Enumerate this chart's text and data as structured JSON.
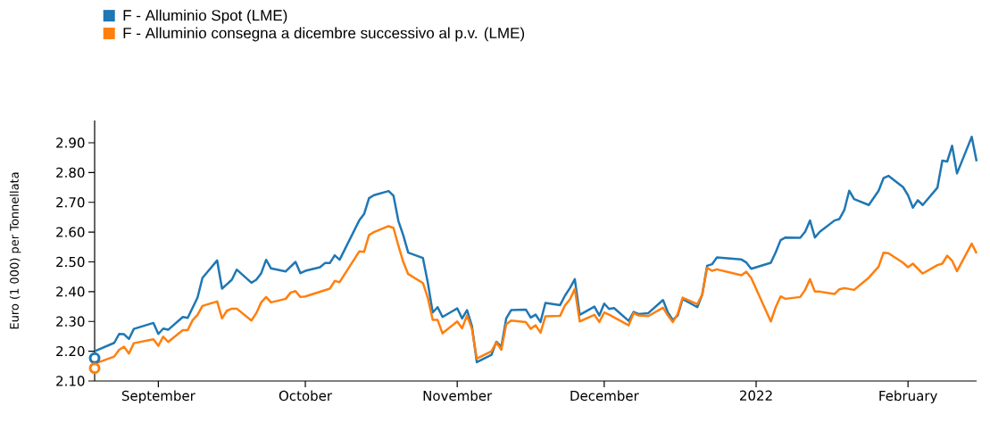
{
  "chart_data": {
    "type": "line",
    "ylabel": "Euro (1 000) per Tonnellata",
    "legend": "top left",
    "grid": false,
    "xlim": [
      "2021-08-19",
      "2022-02-15"
    ],
    "xticks": [
      {
        "value": "2021-09-01",
        "label": "September"
      },
      {
        "value": "2021-10-01",
        "label": "October"
      },
      {
        "value": "2021-11-01",
        "label": "November"
      },
      {
        "value": "2021-12-01",
        "label": "December"
      },
      {
        "value": "2022-01-01",
        "label": "2022"
      },
      {
        "value": "2022-02-01",
        "label": "February"
      }
    ],
    "ylim": [
      2.1,
      2.975
    ],
    "yticks": [
      {
        "value": 2.1,
        "label": "2.10"
      },
      {
        "value": 2.2,
        "label": "2.20"
      },
      {
        "value": 2.3,
        "label": "2.30"
      },
      {
        "value": 2.4,
        "label": "2.40"
      },
      {
        "value": 2.5,
        "label": "2.50"
      },
      {
        "value": 2.6,
        "label": "2.60"
      },
      {
        "value": 2.7,
        "label": "2.70"
      },
      {
        "value": 2.8,
        "label": "2.80"
      },
      {
        "value": 2.9,
        "label": "2.90"
      }
    ],
    "series": [
      {
        "name": "F - Alluminio Spot (LME)",
        "color": "#1f77b4",
        "x": [
          "2021-08-19",
          "2021-08-23",
          "2021-08-24",
          "2021-08-25",
          "2021-08-26",
          "2021-08-27",
          "2021-08-31",
          "2021-09-01",
          "2021-09-02",
          "2021-09-03",
          "2021-09-06",
          "2021-09-07",
          "2021-09-09",
          "2021-09-10",
          "2021-09-13",
          "2021-09-14",
          "2021-09-16",
          "2021-09-17",
          "2021-09-20",
          "2021-09-21",
          "2021-09-22",
          "2021-09-23",
          "2021-09-24",
          "2021-09-27",
          "2021-09-29",
          "2021-09-30",
          "2021-10-01",
          "2021-10-04",
          "2021-10-05",
          "2021-10-06",
          "2021-10-07",
          "2021-10-08",
          "2021-10-12",
          "2021-10-13",
          "2021-10-14",
          "2021-10-15",
          "2021-10-18",
          "2021-10-19",
          "2021-10-20",
          "2021-10-21",
          "2021-10-22",
          "2021-10-25",
          "2021-10-26",
          "2021-10-27",
          "2021-10-28",
          "2021-10-29",
          "2021-11-01",
          "2021-11-02",
          "2021-11-03",
          "2021-11-04",
          "2021-11-05",
          "2021-11-08",
          "2021-11-09",
          "2021-11-10",
          "2021-11-11",
          "2021-11-12",
          "2021-11-15",
          "2021-11-16",
          "2021-11-17",
          "2021-11-18",
          "2021-11-19",
          "2021-11-22",
          "2021-11-23",
          "2021-11-24",
          "2021-11-25",
          "2021-11-26",
          "2021-11-29",
          "2021-11-30",
          "2021-12-01",
          "2021-12-02",
          "2021-12-03",
          "2021-12-06",
          "2021-12-07",
          "2021-12-08",
          "2021-12-10",
          "2021-12-13",
          "2021-12-14",
          "2021-12-15",
          "2021-12-16",
          "2021-12-17",
          "2021-12-20",
          "2021-12-21",
          "2021-12-22",
          "2021-12-23",
          "2021-12-24",
          "2021-12-29",
          "2021-12-30",
          "2021-12-31",
          "2022-01-04",
          "2022-01-05",
          "2022-01-06",
          "2022-01-07",
          "2022-01-10",
          "2022-01-11",
          "2022-01-12",
          "2022-01-13",
          "2022-01-14",
          "2022-01-17",
          "2022-01-18",
          "2022-01-19",
          "2022-01-20",
          "2022-01-21",
          "2022-01-24",
          "2022-01-26",
          "2022-01-27",
          "2022-01-28",
          "2022-01-31",
          "2022-02-01",
          "2022-02-02",
          "2022-02-03",
          "2022-02-04",
          "2022-02-07",
          "2022-02-08",
          "2022-02-09",
          "2022-02-10",
          "2022-02-11",
          "2022-02-14",
          "2022-02-15"
        ],
        "values": [
          2.2,
          2.228,
          2.258,
          2.257,
          2.241,
          2.275,
          2.295,
          2.258,
          2.276,
          2.272,
          2.315,
          2.312,
          2.38,
          2.446,
          2.505,
          2.41,
          2.44,
          2.474,
          2.43,
          2.44,
          2.462,
          2.507,
          2.478,
          2.468,
          2.5,
          2.462,
          2.47,
          2.482,
          2.496,
          2.496,
          2.522,
          2.507,
          2.639,
          2.661,
          2.714,
          2.724,
          2.738,
          2.722,
          2.637,
          2.589,
          2.531,
          2.513,
          2.43,
          2.33,
          2.348,
          2.315,
          2.344,
          2.31,
          2.338,
          2.285,
          2.163,
          2.188,
          2.232,
          2.214,
          2.31,
          2.338,
          2.34,
          2.313,
          2.323,
          2.298,
          2.362,
          2.355,
          2.387,
          2.412,
          2.442,
          2.322,
          2.35,
          2.32,
          2.36,
          2.342,
          2.345,
          2.302,
          2.332,
          2.325,
          2.328,
          2.372,
          2.33,
          2.305,
          2.32,
          2.375,
          2.348,
          2.39,
          2.487,
          2.492,
          2.515,
          2.508,
          2.498,
          2.477,
          2.497,
          2.532,
          2.573,
          2.582,
          2.581,
          2.601,
          2.639,
          2.582,
          2.601,
          2.639,
          2.644,
          2.674,
          2.739,
          2.711,
          2.691,
          2.739,
          2.781,
          2.789,
          2.751,
          2.724,
          2.682,
          2.707,
          2.691,
          2.749,
          2.84,
          2.837,
          2.89,
          2.797,
          2.92,
          2.838
        ]
      },
      {
        "name": "F - Alluminio consegna a dicembre successivo al p.v. (LME)",
        "color": "#ff7f0e",
        "x": [
          "2021-08-19",
          "2021-08-23",
          "2021-08-24",
          "2021-08-25",
          "2021-08-26",
          "2021-08-27",
          "2021-08-31",
          "2021-09-01",
          "2021-09-02",
          "2021-09-03",
          "2021-09-06",
          "2021-09-07",
          "2021-09-08",
          "2021-09-09",
          "2021-09-10",
          "2021-09-13",
          "2021-09-14",
          "2021-09-15",
          "2021-09-16",
          "2021-09-17",
          "2021-09-20",
          "2021-09-21",
          "2021-09-22",
          "2021-09-23",
          "2021-09-24",
          "2021-09-27",
          "2021-09-28",
          "2021-09-29",
          "2021-09-30",
          "2021-10-01",
          "2021-10-06",
          "2021-10-07",
          "2021-10-08",
          "2021-10-12",
          "2021-10-13",
          "2021-10-14",
          "2021-10-15",
          "2021-10-18",
          "2021-10-19",
          "2021-10-20",
          "2021-10-21",
          "2021-10-22",
          "2021-10-25",
          "2021-10-26",
          "2021-10-27",
          "2021-10-28",
          "2021-10-29",
          "2021-11-01",
          "2021-11-02",
          "2021-11-03",
          "2021-11-04",
          "2021-11-05",
          "2021-11-08",
          "2021-11-09",
          "2021-11-10",
          "2021-11-11",
          "2021-11-12",
          "2021-11-15",
          "2021-11-16",
          "2021-11-17",
          "2021-11-18",
          "2021-11-19",
          "2021-11-22",
          "2021-11-23",
          "2021-11-24",
          "2021-11-25",
          "2021-11-26",
          "2021-11-29",
          "2021-11-30",
          "2021-12-01",
          "2021-12-02",
          "2021-12-06",
          "2021-12-07",
          "2021-12-08",
          "2021-12-10",
          "2021-12-13",
          "2021-12-14",
          "2021-12-15",
          "2021-12-16",
          "2021-12-17",
          "2021-12-20",
          "2021-12-21",
          "2021-12-22",
          "2021-12-23",
          "2021-12-24",
          "2021-12-29",
          "2021-12-30",
          "2021-12-31",
          "2022-01-04",
          "2022-01-05",
          "2022-01-06",
          "2022-01-07",
          "2022-01-10",
          "2022-01-11",
          "2022-01-12",
          "2022-01-13",
          "2022-01-14",
          "2022-01-17",
          "2022-01-18",
          "2022-01-19",
          "2022-01-21",
          "2022-01-24",
          "2022-01-26",
          "2022-01-27",
          "2022-01-28",
          "2022-01-31",
          "2022-02-01",
          "2022-02-02",
          "2022-02-04",
          "2022-02-07",
          "2022-02-08",
          "2022-02-09",
          "2022-02-10",
          "2022-02-11",
          "2022-02-14",
          "2022-02-15"
        ],
        "values": [
          2.158,
          2.182,
          2.205,
          2.215,
          2.192,
          2.227,
          2.24,
          2.218,
          2.249,
          2.231,
          2.271,
          2.271,
          2.304,
          2.322,
          2.352,
          2.367,
          2.31,
          2.336,
          2.343,
          2.343,
          2.303,
          2.328,
          2.364,
          2.382,
          2.364,
          2.376,
          2.397,
          2.402,
          2.382,
          2.384,
          2.41,
          2.436,
          2.432,
          2.535,
          2.534,
          2.59,
          2.6,
          2.62,
          2.614,
          2.554,
          2.499,
          2.459,
          2.429,
          2.379,
          2.305,
          2.305,
          2.26,
          2.3,
          2.277,
          2.32,
          2.275,
          2.175,
          2.2,
          2.23,
          2.205,
          2.29,
          2.303,
          2.298,
          2.275,
          2.287,
          2.262,
          2.317,
          2.319,
          2.354,
          2.374,
          2.409,
          2.3,
          2.322,
          2.298,
          2.33,
          2.323,
          2.287,
          2.328,
          2.32,
          2.318,
          2.346,
          2.32,
          2.298,
          2.325,
          2.38,
          2.358,
          2.39,
          2.48,
          2.47,
          2.475,
          2.455,
          2.467,
          2.446,
          2.3,
          2.348,
          2.384,
          2.376,
          2.382,
          2.406,
          2.442,
          2.4,
          2.4,
          2.392,
          2.408,
          2.412,
          2.406,
          2.447,
          2.484,
          2.531,
          2.529,
          2.497,
          2.482,
          2.494,
          2.461,
          2.489,
          2.494,
          2.521,
          2.504,
          2.469,
          2.561,
          2.529
        ]
      },
      {
        "type": "scatter",
        "marker": "circle",
        "color": "#1f77b4",
        "x": [
          "2021-08-19"
        ],
        "values": [
          2.177
        ]
      },
      {
        "type": "scatter",
        "marker": "circle",
        "color": "#ff7f0e",
        "x": [
          "2021-08-19"
        ],
        "values": [
          2.143
        ]
      }
    ]
  }
}
